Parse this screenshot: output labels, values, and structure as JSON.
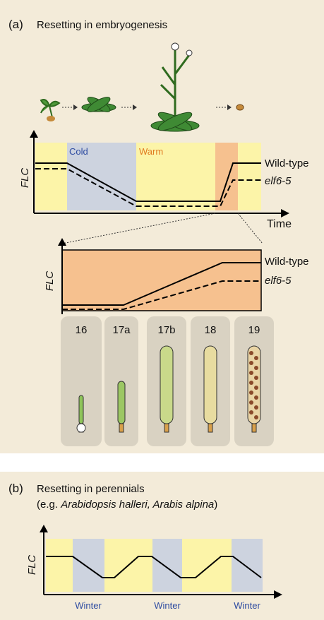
{
  "panel_a": {
    "label": "(a)",
    "title": "Resetting in embryogenesis",
    "chart1": {
      "y_label": "FLC",
      "cold": "Cold",
      "warm": "Warm",
      "wild_type": "Wild-type",
      "mutant": "elf6-5",
      "x_label": "Time"
    },
    "chart2": {
      "y_label": "FLC",
      "wild_type": "Wild-type",
      "mutant": "elf6-5"
    },
    "stages": [
      "16",
      "17a",
      "17b",
      "18",
      "19"
    ]
  },
  "panel_b": {
    "label": "(b)",
    "title": "Resetting in perennials",
    "subtitle_prefix": "(e.g. ",
    "subtitle_species": "Arabidopsis halleri, Arabis alpina",
    "subtitle_suffix": ")",
    "chart": {
      "y_label": "FLC",
      "winter_labels": [
        "Winter",
        "Winter",
        "Winter"
      ]
    }
  }
}
